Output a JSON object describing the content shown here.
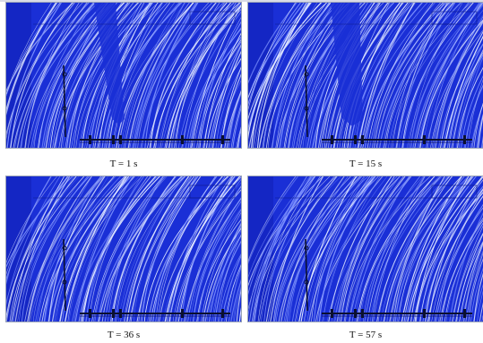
{
  "colors": {
    "background": "#1a2fd6",
    "streamline_light": "#dfe6ff",
    "streamline_mid": "#7f93ff",
    "structure": "#0b1030"
  },
  "panels": [
    {
      "caption": "T = 1 s"
    },
    {
      "caption": "T = 15 s"
    },
    {
      "caption": "T = 36 s"
    },
    {
      "caption": "T = 57 s"
    }
  ]
}
